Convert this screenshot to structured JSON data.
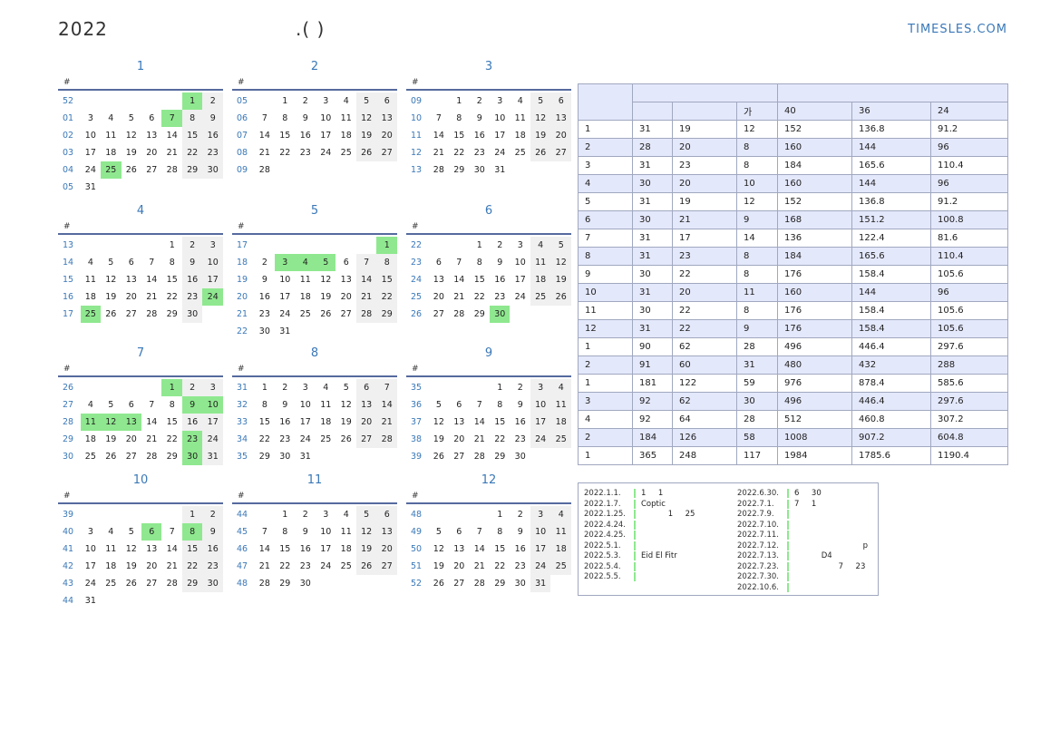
{
  "header": {
    "year": "2022",
    "subtitle": ".(          )",
    "brand": "TIMESLES.COM"
  },
  "months": [
    {
      "name": "1",
      "hash": "#",
      "weeks": [
        [
          "52",
          "",
          "",
          "",
          "",
          "",
          "1",
          "2"
        ],
        [
          "01",
          "3",
          "4",
          "5",
          "6",
          "7",
          "8",
          "9"
        ],
        [
          "02",
          "10",
          "11",
          "12",
          "13",
          "14",
          "15",
          "16"
        ],
        [
          "03",
          "17",
          "18",
          "19",
          "20",
          "21",
          "22",
          "23"
        ],
        [
          "04",
          "24",
          "25",
          "26",
          "27",
          "28",
          "29",
          "30"
        ],
        [
          "05",
          "31",
          "",
          "",
          "",
          "",
          "",
          ""
        ]
      ],
      "holidays": [
        "1",
        "7",
        "25"
      ]
    },
    {
      "name": "2",
      "hash": "#",
      "weeks": [
        [
          "05",
          "",
          "1",
          "2",
          "3",
          "4",
          "5",
          "6"
        ],
        [
          "06",
          "7",
          "8",
          "9",
          "10",
          "11",
          "12",
          "13"
        ],
        [
          "07",
          "14",
          "15",
          "16",
          "17",
          "18",
          "19",
          "20"
        ],
        [
          "08",
          "21",
          "22",
          "23",
          "24",
          "25",
          "26",
          "27"
        ],
        [
          "09",
          "28",
          "",
          "",
          "",
          "",
          "",
          ""
        ]
      ],
      "holidays": []
    },
    {
      "name": "3",
      "hash": "#",
      "weeks": [
        [
          "09",
          "",
          "1",
          "2",
          "3",
          "4",
          "5",
          "6"
        ],
        [
          "10",
          "7",
          "8",
          "9",
          "10",
          "11",
          "12",
          "13"
        ],
        [
          "11",
          "14",
          "15",
          "16",
          "17",
          "18",
          "19",
          "20"
        ],
        [
          "12",
          "21",
          "22",
          "23",
          "24",
          "25",
          "26",
          "27"
        ],
        [
          "13",
          "28",
          "29",
          "30",
          "31",
          "",
          "",
          ""
        ]
      ],
      "holidays": []
    },
    {
      "name": "4",
      "hash": "#",
      "weeks": [
        [
          "13",
          "",
          "",
          "",
          "",
          "1",
          "2",
          "3"
        ],
        [
          "14",
          "4",
          "5",
          "6",
          "7",
          "8",
          "9",
          "10"
        ],
        [
          "15",
          "11",
          "12",
          "13",
          "14",
          "15",
          "16",
          "17"
        ],
        [
          "16",
          "18",
          "19",
          "20",
          "21",
          "22",
          "23",
          "24"
        ],
        [
          "17",
          "25",
          "26",
          "27",
          "28",
          "29",
          "30",
          ""
        ]
      ],
      "holidays": [
        "24",
        "25"
      ]
    },
    {
      "name": "5",
      "hash": "#",
      "weeks": [
        [
          "17",
          "",
          "",
          "",
          "",
          "",
          "",
          "1"
        ],
        [
          "18",
          "2",
          "3",
          "4",
          "5",
          "6",
          "7",
          "8"
        ],
        [
          "19",
          "9",
          "10",
          "11",
          "12",
          "13",
          "14",
          "15"
        ],
        [
          "20",
          "16",
          "17",
          "18",
          "19",
          "20",
          "21",
          "22"
        ],
        [
          "21",
          "23",
          "24",
          "25",
          "26",
          "27",
          "28",
          "29"
        ],
        [
          "22",
          "30",
          "31",
          "",
          "",
          "",
          "",
          ""
        ]
      ],
      "holidays": [
        "1",
        "3",
        "4",
        "5"
      ]
    },
    {
      "name": "6",
      "hash": "#",
      "weeks": [
        [
          "22",
          "",
          "",
          "1",
          "2",
          "3",
          "4",
          "5"
        ],
        [
          "23",
          "6",
          "7",
          "8",
          "9",
          "10",
          "11",
          "12"
        ],
        [
          "24",
          "13",
          "14",
          "15",
          "16",
          "17",
          "18",
          "19"
        ],
        [
          "25",
          "20",
          "21",
          "22",
          "23",
          "24",
          "25",
          "26"
        ],
        [
          "26",
          "27",
          "28",
          "29",
          "30",
          "",
          "",
          ""
        ]
      ],
      "holidays": [
        "30"
      ]
    },
    {
      "name": "7",
      "hash": "#",
      "weeks": [
        [
          "26",
          "",
          "",
          "",
          "",
          "1",
          "2",
          "3"
        ],
        [
          "27",
          "4",
          "5",
          "6",
          "7",
          "8",
          "9",
          "10"
        ],
        [
          "28",
          "11",
          "12",
          "13",
          "14",
          "15",
          "16",
          "17"
        ],
        [
          "29",
          "18",
          "19",
          "20",
          "21",
          "22",
          "23",
          "24"
        ],
        [
          "30",
          "25",
          "26",
          "27",
          "28",
          "29",
          "30",
          "31"
        ]
      ],
      "holidays": [
        "1",
        "9",
        "10",
        "11",
        "12",
        "13",
        "23",
        "30"
      ]
    },
    {
      "name": "8",
      "hash": "#",
      "weeks": [
        [
          "31",
          "1",
          "2",
          "3",
          "4",
          "5",
          "6",
          "7"
        ],
        [
          "32",
          "8",
          "9",
          "10",
          "11",
          "12",
          "13",
          "14"
        ],
        [
          "33",
          "15",
          "16",
          "17",
          "18",
          "19",
          "20",
          "21"
        ],
        [
          "34",
          "22",
          "23",
          "24",
          "25",
          "26",
          "27",
          "28"
        ],
        [
          "35",
          "29",
          "30",
          "31",
          "",
          "",
          "",
          ""
        ]
      ],
      "holidays": []
    },
    {
      "name": "9",
      "hash": "#",
      "weeks": [
        [
          "35",
          "",
          "",
          "",
          "1",
          "2",
          "3",
          "4"
        ],
        [
          "36",
          "5",
          "6",
          "7",
          "8",
          "9",
          "10",
          "11"
        ],
        [
          "37",
          "12",
          "13",
          "14",
          "15",
          "16",
          "17",
          "18"
        ],
        [
          "38",
          "19",
          "20",
          "21",
          "22",
          "23",
          "24",
          "25"
        ],
        [
          "39",
          "26",
          "27",
          "28",
          "29",
          "30",
          "",
          ""
        ]
      ],
      "holidays": []
    },
    {
      "name": "10",
      "hash": "#",
      "weeks": [
        [
          "39",
          "",
          "",
          "",
          "",
          "",
          "1",
          "2"
        ],
        [
          "40",
          "3",
          "4",
          "5",
          "6",
          "7",
          "8",
          "9"
        ],
        [
          "41",
          "10",
          "11",
          "12",
          "13",
          "14",
          "15",
          "16"
        ],
        [
          "42",
          "17",
          "18",
          "19",
          "20",
          "21",
          "22",
          "23"
        ],
        [
          "43",
          "24",
          "25",
          "26",
          "27",
          "28",
          "29",
          "30"
        ],
        [
          "44",
          "31",
          "",
          "",
          "",
          "",
          "",
          ""
        ]
      ],
      "holidays": [
        "6",
        "8"
      ]
    },
    {
      "name": "11",
      "hash": "#",
      "weeks": [
        [
          "44",
          "",
          "1",
          "2",
          "3",
          "4",
          "5",
          "6"
        ],
        [
          "45",
          "7",
          "8",
          "9",
          "10",
          "11",
          "12",
          "13"
        ],
        [
          "46",
          "14",
          "15",
          "16",
          "17",
          "18",
          "19",
          "20"
        ],
        [
          "47",
          "21",
          "22",
          "23",
          "24",
          "25",
          "26",
          "27"
        ],
        [
          "48",
          "28",
          "29",
          "30",
          "",
          "",
          "",
          ""
        ]
      ],
      "holidays": []
    },
    {
      "name": "12",
      "hash": "#",
      "weeks": [
        [
          "48",
          "",
          "",
          "",
          "1",
          "2",
          "3",
          "4"
        ],
        [
          "49",
          "5",
          "6",
          "7",
          "8",
          "9",
          "10",
          "11"
        ],
        [
          "50",
          "12",
          "13",
          "14",
          "15",
          "16",
          "17",
          "18"
        ],
        [
          "51",
          "19",
          "20",
          "21",
          "22",
          "23",
          "24",
          "25"
        ],
        [
          "52",
          "26",
          "27",
          "28",
          "29",
          "30",
          "31",
          ""
        ]
      ],
      "holidays": []
    }
  ],
  "stats": {
    "header": [
      "",
      "",
      "",
      "가",
      "40",
      "36",
      "24"
    ],
    "rows": [
      [
        "1",
        "31",
        "19",
        "12",
        "152",
        "136.8",
        "91.2"
      ],
      [
        "2",
        "28",
        "20",
        "8",
        "160",
        "144",
        "96"
      ],
      [
        "3",
        "31",
        "23",
        "8",
        "184",
        "165.6",
        "110.4"
      ],
      [
        "4",
        "30",
        "20",
        "10",
        "160",
        "144",
        "96"
      ],
      [
        "5",
        "31",
        "19",
        "12",
        "152",
        "136.8",
        "91.2"
      ],
      [
        "6",
        "30",
        "21",
        "9",
        "168",
        "151.2",
        "100.8"
      ],
      [
        "7",
        "31",
        "17",
        "14",
        "136",
        "122.4",
        "81.6"
      ],
      [
        "8",
        "31",
        "23",
        "8",
        "184",
        "165.6",
        "110.4"
      ],
      [
        "9",
        "30",
        "22",
        "8",
        "176",
        "158.4",
        "105.6"
      ],
      [
        "10",
        "31",
        "20",
        "11",
        "160",
        "144",
        "96"
      ],
      [
        "11",
        "30",
        "22",
        "8",
        "176",
        "158.4",
        "105.6"
      ],
      [
        "12",
        "31",
        "22",
        "9",
        "176",
        "158.4",
        "105.6"
      ],
      [
        "1",
        "90",
        "62",
        "28",
        "496",
        "446.4",
        "297.6"
      ],
      [
        "2",
        "91",
        "60",
        "31",
        "480",
        "432",
        "288"
      ],
      [
        "1",
        "181",
        "122",
        "59",
        "976",
        "878.4",
        "585.6"
      ],
      [
        "3",
        "92",
        "62",
        "30",
        "496",
        "446.4",
        "297.6"
      ],
      [
        "4",
        "92",
        "64",
        "28",
        "512",
        "460.8",
        "307.2"
      ],
      [
        "2",
        "184",
        "126",
        "58",
        "1008",
        "907.2",
        "604.8"
      ],
      [
        "1",
        "365",
        "248",
        "117",
        "1984",
        "1785.6",
        "1190.4"
      ]
    ]
  },
  "notes": {
    "left": [
      [
        "2022.1.1.",
        "1     1"
      ],
      [
        "2022.1.7.",
        "Coptic"
      ],
      [
        "2022.1.25.",
        "           1     25"
      ],
      [
        "2022.4.24.",
        ""
      ],
      [
        "2022.4.25.",
        ""
      ],
      [
        "2022.5.1.",
        ""
      ],
      [
        "2022.5.3.",
        "Eid El Fitr"
      ],
      [
        "2022.5.4.",
        ""
      ],
      [
        "2022.5.5.",
        ""
      ]
    ],
    "right": [
      [
        "2022.6.30.",
        "6     30"
      ],
      [
        "2022.7.1.",
        "7     1"
      ],
      [
        "2022.7.9.",
        ""
      ],
      [
        "2022.7.10.",
        ""
      ],
      [
        "2022.7.11.",
        ""
      ],
      [
        "2022.7.12.",
        "                            p"
      ],
      [
        "2022.7.13.",
        "           D4"
      ],
      [
        "2022.7.23.",
        "                  7     23"
      ],
      [
        "2022.7.30.",
        ""
      ],
      [
        "2022.10.6.",
        ""
      ]
    ]
  }
}
